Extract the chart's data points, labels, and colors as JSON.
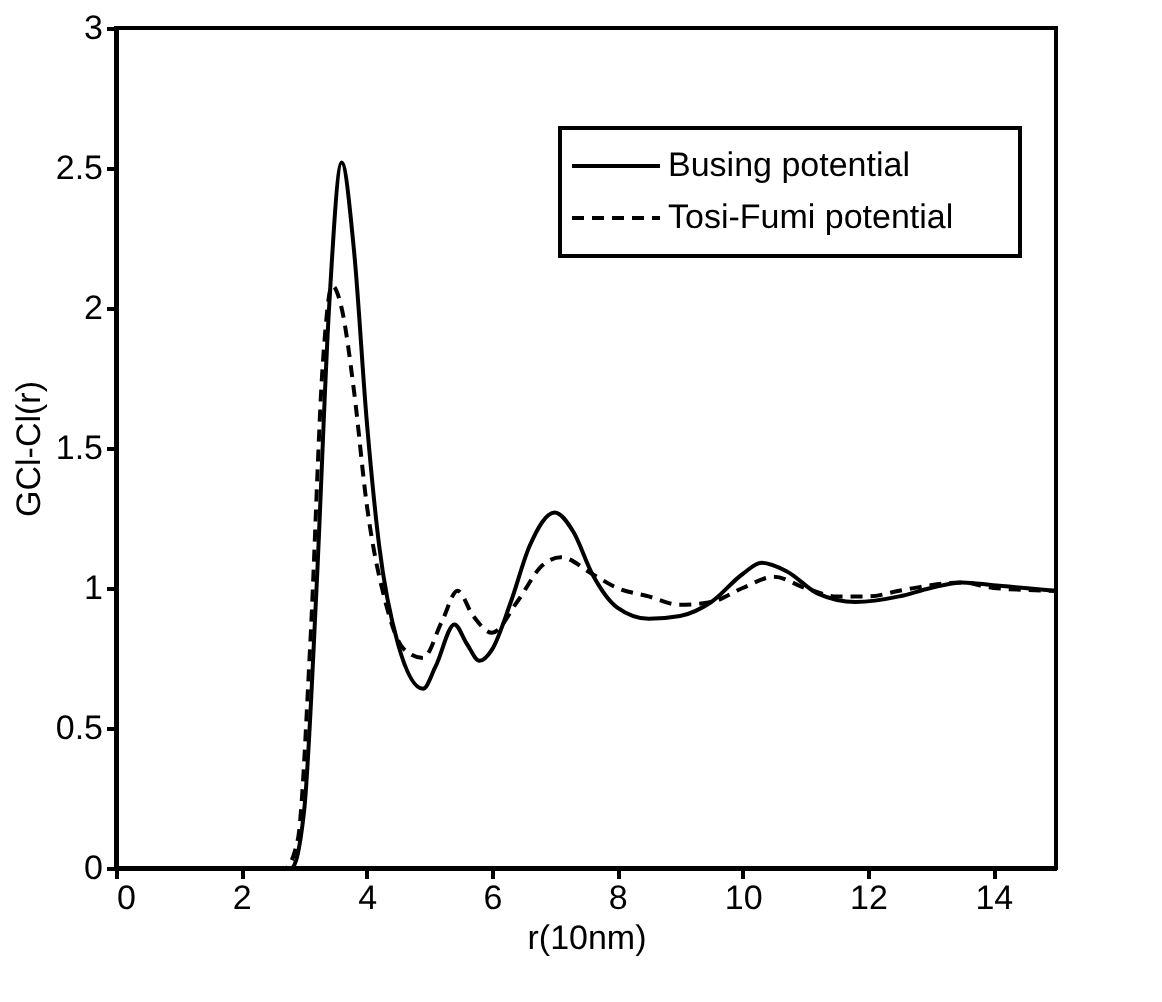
{
  "chart_data": {
    "type": "line",
    "xlabel": "r(10nm)",
    "ylabel": "GCl-Cl(r)",
    "xlim": [
      0,
      15
    ],
    "ylim": [
      0,
      3
    ],
    "xticks": [
      0,
      2,
      4,
      6,
      8,
      10,
      12,
      14
    ],
    "yticks": [
      0,
      0.5,
      1,
      1.5,
      2,
      2.5,
      3
    ],
    "grid": false,
    "legend": "top right",
    "series": [
      {
        "name": "Busing potential",
        "color": "#000000",
        "line_style": "solid",
        "x": [
          0,
          2.8,
          3.0,
          3.2,
          3.4,
          3.6,
          3.8,
          4.0,
          4.2,
          4.5,
          4.9,
          5.1,
          5.4,
          5.6,
          5.8,
          6.0,
          6.3,
          6.6,
          7.0,
          7.3,
          7.6,
          8.0,
          8.5,
          9.0,
          9.5,
          10.0,
          10.3,
          10.7,
          11.2,
          11.8,
          12.5,
          13.0,
          13.5,
          14.0,
          14.5,
          15
        ],
        "values": [
          0,
          0,
          0.2,
          1.0,
          2.0,
          2.52,
          2.2,
          1.6,
          1.15,
          0.8,
          0.64,
          0.72,
          0.87,
          0.8,
          0.74,
          0.78,
          0.95,
          1.15,
          1.27,
          1.2,
          1.05,
          0.93,
          0.89,
          0.9,
          0.95,
          1.05,
          1.09,
          1.06,
          0.98,
          0.95,
          0.97,
          1.0,
          1.02,
          1.01,
          1.0,
          0.99
        ]
      },
      {
        "name": "Tosi-Fumi potential",
        "color": "#000000",
        "line_style": "dashed",
        "x": [
          0,
          2.7,
          2.9,
          3.1,
          3.3,
          3.45,
          3.6,
          3.8,
          4.0,
          4.3,
          4.6,
          4.9,
          5.2,
          5.45,
          5.7,
          6.0,
          6.4,
          6.8,
          7.1,
          7.6,
          8.0,
          8.5,
          9.0,
          9.5,
          10.0,
          10.5,
          11.0,
          11.5,
          12.0,
          12.5,
          13.0,
          13.5,
          14.0,
          15
        ],
        "values": [
          0,
          0,
          0.1,
          0.8,
          1.8,
          2.08,
          2.0,
          1.7,
          1.3,
          0.95,
          0.78,
          0.75,
          0.88,
          0.99,
          0.9,
          0.84,
          0.95,
          1.08,
          1.11,
          1.05,
          1.0,
          0.97,
          0.94,
          0.95,
          1.0,
          1.04,
          1.0,
          0.97,
          0.97,
          0.99,
          1.01,
          1.02,
          1.0,
          0.99
        ]
      }
    ]
  }
}
